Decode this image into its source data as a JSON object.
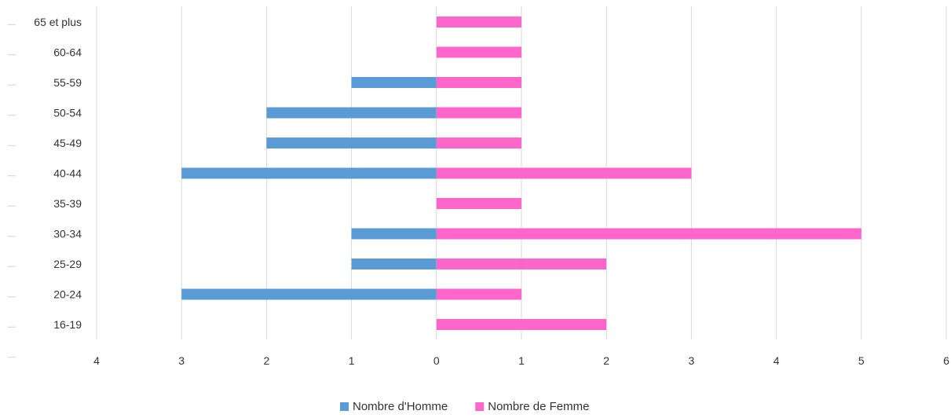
{
  "chart_data": {
    "type": "bar",
    "orientation": "horizontal",
    "categories": [
      "65 et plus",
      "60-64",
      "55-59",
      "50-54",
      "45-49",
      "40-44",
      "35-39",
      "30-34",
      "25-29",
      "20-24",
      "16-19"
    ],
    "series": [
      {
        "name": "Nombre d'Homme",
        "color": "#5b9bd5",
        "side": "left",
        "values": [
          0,
          0,
          1,
          2,
          2,
          3,
          0,
          1,
          1,
          3,
          0
        ]
      },
      {
        "name": "Nombre de Femme",
        "color": "#ff66cc",
        "side": "right",
        "values": [
          1,
          1,
          1,
          1,
          1,
          3,
          1,
          5,
          2,
          1,
          2
        ]
      }
    ],
    "xlim": [
      -4,
      6
    ],
    "x_ticks": [
      -4,
      -3,
      -2,
      -1,
      0,
      1,
      2,
      3,
      4,
      5,
      6
    ],
    "x_tick_labels": [
      "4",
      "3",
      "2",
      "1",
      "0",
      "1",
      "2",
      "3",
      "4",
      "5",
      "6"
    ],
    "grid": true,
    "legend_position": "bottom"
  }
}
